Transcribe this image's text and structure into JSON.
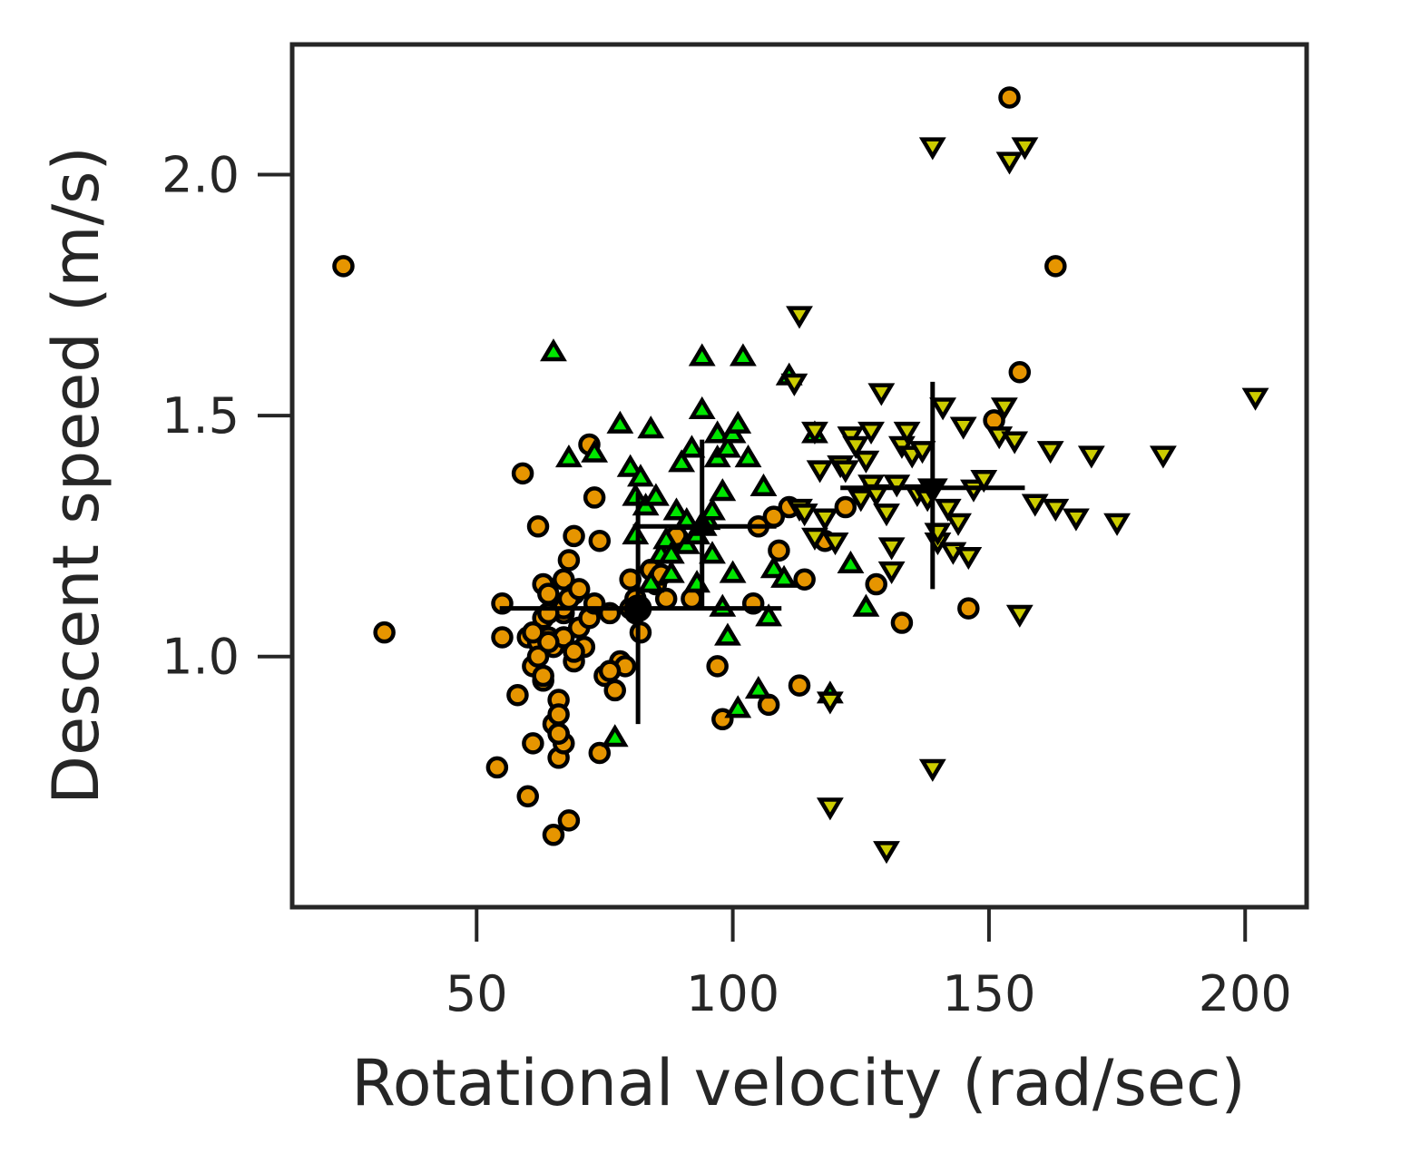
{
  "chart_data": {
    "type": "scatter",
    "title": "",
    "xlabel": "Rotational velocity (rad/sec)",
    "ylabel": "Descent speed (m/s)",
    "xlim": [
      14,
      212
    ],
    "ylim": [
      0.48,
      2.27
    ],
    "xticks": [
      50,
      100,
      150,
      200
    ],
    "xtick_labels": [
      "50",
      "100",
      "150",
      "200"
    ],
    "yticks": [
      1.0,
      1.5,
      2.0
    ],
    "ytick_labels": [
      "1.0",
      "1.5",
      "2.0"
    ],
    "grid": false,
    "legend": null,
    "colors": {
      "frame": "#262626",
      "edge": "#000000",
      "circle_series": "#e69500",
      "up_triangle_series": "#00e600",
      "down_triangle_series": "#cccc00",
      "error_bar": "#000000"
    },
    "series": [
      {
        "marker": "circle",
        "color": "#e69500",
        "x": [
          24,
          32,
          54,
          55,
          59,
          60,
          60,
          61,
          61,
          62,
          62,
          63,
          63,
          63,
          64,
          64,
          65,
          65,
          65,
          66,
          66,
          66,
          67,
          67,
          67,
          67,
          68,
          68,
          69,
          69,
          69,
          70,
          71,
          72,
          73,
          74,
          74,
          75,
          76,
          77,
          78,
          79,
          80,
          80,
          81,
          82,
          84,
          85,
          87,
          89,
          92,
          97,
          98,
          104,
          105,
          107,
          108,
          109,
          111,
          113,
          114,
          118,
          122,
          128,
          133,
          146,
          151,
          154,
          156,
          163,
          68,
          72,
          70,
          76,
          66,
          62,
          58,
          55,
          73,
          81,
          86,
          64,
          67,
          69,
          61,
          63,
          66,
          64
        ],
        "y": [
          1.81,
          1.05,
          0.77,
          1.11,
          1.38,
          0.71,
          1.04,
          0.82,
          0.98,
          1.27,
          1.03,
          1.08,
          1.15,
          0.95,
          1.04,
          1.13,
          0.63,
          0.86,
          1.02,
          0.91,
          0.79,
          0.84,
          1.09,
          1.1,
          1.16,
          1.04,
          0.66,
          1.2,
          0.99,
          1.13,
          1.25,
          1.06,
          1.02,
          1.44,
          1.33,
          1.24,
          0.8,
          0.96,
          1.09,
          0.93,
          0.99,
          0.98,
          1.16,
          1.1,
          1.09,
          1.05,
          1.18,
          1.15,
          1.12,
          1.25,
          1.12,
          0.98,
          0.87,
          1.11,
          1.27,
          0.9,
          1.29,
          1.22,
          1.31,
          0.94,
          1.16,
          1.24,
          1.31,
          1.15,
          1.07,
          1.1,
          1.49,
          2.16,
          1.59,
          1.81,
          1.12,
          1.08,
          1.14,
          0.97,
          0.88,
          1.0,
          0.92,
          1.04,
          1.11,
          1.12,
          1.17,
          1.09,
          0.82,
          1.01,
          1.05,
          0.96,
          0.84,
          1.03
        ]
      },
      {
        "marker": "triangle-up",
        "color": "#00e600",
        "x": [
          65,
          68,
          73,
          77,
          78,
          80,
          81,
          81,
          82,
          83,
          84,
          85,
          86,
          87,
          88,
          89,
          90,
          91,
          92,
          93,
          93,
          94,
          94,
          95,
          96,
          97,
          97,
          98,
          98,
          99,
          99,
          100,
          100,
          101,
          101,
          102,
          103,
          105,
          106,
          107,
          108,
          110,
          111,
          116,
          119,
          123,
          126,
          91,
          96,
          84,
          88
        ],
        "y": [
          1.63,
          1.41,
          1.42,
          0.83,
          1.48,
          1.39,
          1.33,
          1.25,
          1.37,
          1.31,
          1.47,
          1.33,
          1.21,
          1.24,
          1.17,
          1.3,
          1.4,
          1.23,
          1.43,
          1.15,
          1.25,
          1.51,
          1.62,
          1.28,
          1.21,
          1.41,
          1.46,
          1.34,
          1.1,
          1.04,
          1.43,
          1.17,
          1.46,
          0.89,
          1.48,
          1.62,
          1.41,
          0.93,
          1.35,
          1.08,
          1.18,
          1.16,
          1.58,
          1.46,
          0.92,
          1.19,
          1.1,
          1.28,
          1.3,
          1.15,
          1.21
        ]
      },
      {
        "marker": "triangle-down",
        "color": "#cccc00",
        "x": [
          112,
          113,
          113,
          114,
          116,
          116,
          117,
          118,
          119,
          119,
          120,
          121,
          122,
          123,
          124,
          125,
          126,
          127,
          127,
          128,
          129,
          130,
          131,
          131,
          132,
          133,
          134,
          135,
          136,
          137,
          138,
          139,
          139,
          140,
          141,
          142,
          143,
          144,
          145,
          146,
          147,
          149,
          152,
          153,
          154,
          155,
          156,
          157,
          159,
          162,
          163,
          167,
          170,
          175,
          184,
          202,
          140,
          130
        ],
        "y": [
          1.57,
          1.71,
          1.31,
          1.3,
          1.25,
          1.47,
          1.39,
          1.29,
          0.91,
          0.69,
          1.24,
          1.4,
          1.39,
          1.46,
          1.44,
          1.33,
          1.41,
          1.36,
          1.47,
          1.34,
          1.55,
          1.3,
          1.23,
          1.18,
          1.36,
          1.44,
          1.47,
          1.42,
          1.34,
          1.43,
          1.33,
          0.77,
          2.06,
          1.24,
          1.52,
          1.31,
          1.22,
          1.28,
          1.48,
          1.21,
          1.35,
          1.37,
          1.46,
          1.52,
          2.03,
          1.45,
          1.09,
          2.06,
          1.32,
          1.43,
          1.31,
          1.29,
          1.42,
          1.28,
          1.42,
          1.54,
          1.26,
          0.6
        ]
      }
    ],
    "error_bars": [
      {
        "marker": "circle",
        "x": 81.5,
        "y": 1.1,
        "xerr": [
          54.5,
          109.5
        ],
        "yerr": [
          0.86,
          1.34
        ]
      },
      {
        "marker": "triangle-up",
        "x": 94.0,
        "y": 1.27,
        "xerr": [
          80.5,
          108.5
        ],
        "yerr": [
          1.1,
          1.45
        ]
      },
      {
        "marker": "triangle-down",
        "x": 139.0,
        "y": 1.35,
        "xerr": [
          121.0,
          157.0
        ],
        "yerr": [
          1.14,
          1.57
        ]
      }
    ]
  }
}
